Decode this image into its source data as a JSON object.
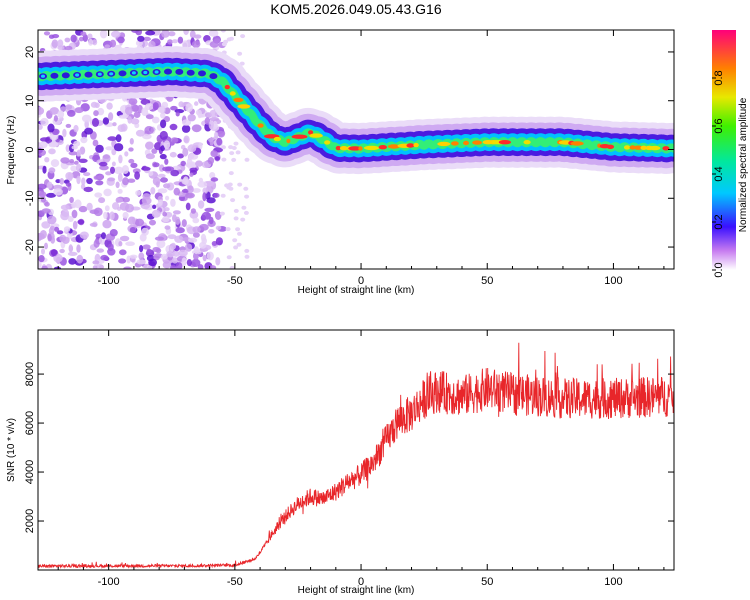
{
  "title": "KOM5.2026.049.05.43.G16",
  "chart_data": [
    {
      "type": "heatmap",
      "name": "spectrogram",
      "xlabel": "Height of straight line (km)",
      "ylabel": "Frequency (Hz)",
      "xlim": [
        -128,
        124
      ],
      "ylim": [
        -24.5,
        24.5
      ],
      "xticks": [
        -100,
        -50,
        0,
        50,
        100
      ],
      "yticks": [
        -20,
        -10,
        0,
        10,
        20
      ],
      "colorbar": {
        "label": "Normalized spectral amplitude",
        "range": [
          0,
          1
        ],
        "ticks": [
          0.0,
          0.2,
          0.4,
          0.6,
          0.8
        ],
        "tick_labels": [
          "0.0",
          "0.2",
          "0.4",
          "0.6",
          "0.8"
        ]
      },
      "noise_region_x": [
        -128,
        -55
      ],
      "ridge": {
        "x": [
          -128,
          -100,
          -75,
          -60,
          -55,
          -50,
          -45,
          -40,
          -35,
          -30,
          -25,
          -20,
          -15,
          -10,
          0,
          25,
          50,
          80,
          100,
          124
        ],
        "y": [
          15,
          15.5,
          16,
          15.5,
          14,
          11,
          8,
          5,
          2.5,
          1.5,
          2.5,
          3.5,
          2,
          0.3,
          0.2,
          1,
          1.5,
          1.5,
          0.5,
          0.2
        ]
      }
    },
    {
      "type": "line",
      "name": "snr",
      "xlabel": "Height of straight line (km)",
      "ylabel": "SNR (10 * v/v)",
      "xlim": [
        -128,
        124
      ],
      "ylim": [
        0,
        9800
      ],
      "xticks": [
        -100,
        -50,
        0,
        50,
        100
      ],
      "yticks": [
        2000,
        4000,
        6000,
        8000
      ],
      "color": "#e8262a",
      "trend": {
        "x": [
          -128,
          -70,
          -50,
          -42,
          -38,
          -35,
          -30,
          -25,
          -20,
          -15,
          -10,
          -5,
          0,
          5,
          10,
          15,
          20,
          25,
          30,
          40,
          50,
          60,
          80,
          100,
          124
        ],
        "y": [
          160,
          170,
          200,
          450,
          1000,
          1500,
          2200,
          2700,
          3000,
          2900,
          3200,
          3600,
          3900,
          4400,
          5300,
          6100,
          6400,
          7000,
          7300,
          7100,
          7400,
          7200,
          7000,
          7000,
          7100
        ]
      }
    }
  ]
}
